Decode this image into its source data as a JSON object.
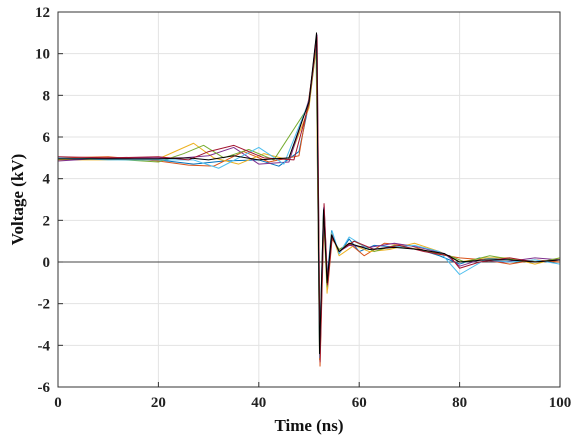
{
  "chart_data": {
    "type": "line",
    "title": "",
    "xlabel": "Time (ns)",
    "ylabel": "Voltage (kV)",
    "xlim": [
      0,
      100
    ],
    "ylim": [
      -6,
      12
    ],
    "x_ticks": [
      "0",
      "20",
      "40",
      "60",
      "80",
      "100"
    ],
    "y_ticks": [
      "-6",
      "-4",
      "-2",
      "0",
      "2",
      "4",
      "6",
      "8",
      "10",
      "12"
    ],
    "grid": true,
    "legend": "none",
    "zero_line": 0,
    "series": [
      {
        "color": "#0072bd",
        "values": [
          [
            0,
            4.95
          ],
          [
            10,
            4.98
          ],
          [
            20,
            4.9
          ],
          [
            27,
            4.7
          ],
          [
            33,
            4.85
          ],
          [
            40,
            4.9
          ],
          [
            44,
            4.6
          ],
          [
            48,
            5.3
          ],
          [
            50,
            7.6
          ],
          [
            51.4,
            10.7
          ],
          [
            52.1,
            -4.2
          ],
          [
            52.9,
            2.6
          ],
          [
            53.6,
            -0.8
          ],
          [
            54.5,
            1.5
          ],
          [
            56,
            0.4
          ],
          [
            58,
            1.1
          ],
          [
            60,
            0.5
          ],
          [
            63,
            0.8
          ],
          [
            68,
            0.7
          ],
          [
            72,
            0.6
          ],
          [
            76,
            0.3
          ],
          [
            80,
            -0.1
          ],
          [
            84,
            0.2
          ],
          [
            90,
            0.1
          ],
          [
            95,
            0
          ],
          [
            100,
            0.1
          ]
        ]
      },
      {
        "color": "#d95319",
        "values": [
          [
            0,
            5.0
          ],
          [
            10,
            5.05
          ],
          [
            20,
            4.85
          ],
          [
            26,
            4.65
          ],
          [
            31,
            4.6
          ],
          [
            37,
            5.3
          ],
          [
            42,
            4.8
          ],
          [
            48,
            5.1
          ],
          [
            50,
            7.9
          ],
          [
            51.5,
            10.5
          ],
          [
            52.2,
            -5.0
          ],
          [
            53,
            2.2
          ],
          [
            53.7,
            -1.3
          ],
          [
            54.6,
            1.1
          ],
          [
            56,
            0.6
          ],
          [
            58,
            0.9
          ],
          [
            61,
            0.3
          ],
          [
            65,
            0.9
          ],
          [
            70,
            0.8
          ],
          [
            75,
            0.4
          ],
          [
            80,
            0.2
          ],
          [
            85,
            0.1
          ],
          [
            90,
            -0.1
          ],
          [
            95,
            0.1
          ],
          [
            100,
            0.0
          ]
        ]
      },
      {
        "color": "#edb120",
        "values": [
          [
            0,
            4.9
          ],
          [
            10,
            4.9
          ],
          [
            20,
            4.95
          ],
          [
            27,
            5.7
          ],
          [
            31,
            5.0
          ],
          [
            36,
            4.7
          ],
          [
            41,
            5.2
          ],
          [
            46,
            4.9
          ],
          [
            50,
            7.4
          ],
          [
            51.4,
            10.3
          ],
          [
            52.1,
            -4.7
          ],
          [
            52.9,
            2.3
          ],
          [
            53.6,
            -1.5
          ],
          [
            54.5,
            1.4
          ],
          [
            56,
            0.3
          ],
          [
            59,
            0.8
          ],
          [
            62,
            0.5
          ],
          [
            66,
            0.6
          ],
          [
            71,
            0.9
          ],
          [
            76,
            0.5
          ],
          [
            80,
            0.0
          ],
          [
            85,
            0.2
          ],
          [
            90,
            0.2
          ],
          [
            95,
            -0.1
          ],
          [
            100,
            0.2
          ]
        ]
      },
      {
        "color": "#7e2f8e",
        "values": [
          [
            0,
            4.85
          ],
          [
            10,
            5.0
          ],
          [
            20,
            5.0
          ],
          [
            25,
            5.0
          ],
          [
            30,
            5.1
          ],
          [
            35,
            5.5
          ],
          [
            40,
            4.7
          ],
          [
            46,
            4.8
          ],
          [
            50,
            7.8
          ],
          [
            51.6,
            10.9
          ],
          [
            52.2,
            -4.5
          ],
          [
            53,
            2.7
          ],
          [
            53.7,
            -0.9
          ],
          [
            54.6,
            1.3
          ],
          [
            56,
            0.5
          ],
          [
            58,
            0.8
          ],
          [
            62,
            0.7
          ],
          [
            67,
            0.9
          ],
          [
            72,
            0.7
          ],
          [
            77,
            0.4
          ],
          [
            80,
            -0.2
          ],
          [
            84,
            0.1
          ],
          [
            89,
            0.0
          ],
          [
            95,
            0.2
          ],
          [
            100,
            0.1
          ]
        ]
      },
      {
        "color": "#77ac30",
        "values": [
          [
            0,
            4.95
          ],
          [
            10,
            4.95
          ],
          [
            20,
            4.8
          ],
          [
            25,
            5.2
          ],
          [
            29,
            5.6
          ],
          [
            33,
            5.0
          ],
          [
            38,
            5.4
          ],
          [
            43,
            4.9
          ],
          [
            50,
            7.5
          ],
          [
            51.5,
            10.4
          ],
          [
            52.2,
            -4.3
          ],
          [
            52.9,
            2.4
          ],
          [
            53.6,
            -1.2
          ],
          [
            54.5,
            1.2
          ],
          [
            56,
            0.6
          ],
          [
            59,
            1.0
          ],
          [
            63,
            0.5
          ],
          [
            67,
            0.8
          ],
          [
            72,
            0.6
          ],
          [
            78,
            0.3
          ],
          [
            81,
            0.0
          ],
          [
            86,
            0.3
          ],
          [
            91,
            0.1
          ],
          [
            96,
            0.0
          ],
          [
            100,
            0.2
          ]
        ]
      },
      {
        "color": "#4dbeee",
        "values": [
          [
            0,
            5.0
          ],
          [
            10,
            4.9
          ],
          [
            20,
            4.9
          ],
          [
            27,
            4.9
          ],
          [
            32,
            4.5
          ],
          [
            36,
            5.0
          ],
          [
            40,
            5.5
          ],
          [
            45,
            4.7
          ],
          [
            50,
            7.7
          ],
          [
            51.5,
            10.6
          ],
          [
            52.1,
            -4.6
          ],
          [
            53,
            2.5
          ],
          [
            53.7,
            -1.0
          ],
          [
            54.6,
            1.5
          ],
          [
            56,
            0.4
          ],
          [
            58,
            1.2
          ],
          [
            62,
            0.6
          ],
          [
            66,
            0.7
          ],
          [
            71,
            0.8
          ],
          [
            76,
            0.5
          ],
          [
            80,
            -0.6
          ],
          [
            85,
            0.1
          ],
          [
            90,
            0.0
          ],
          [
            95,
            0.1
          ],
          [
            100,
            -0.1
          ]
        ]
      },
      {
        "color": "#a2142f",
        "values": [
          [
            0,
            5.05
          ],
          [
            10,
            5.0
          ],
          [
            20,
            5.05
          ],
          [
            26,
            4.9
          ],
          [
            30,
            5.3
          ],
          [
            35,
            5.6
          ],
          [
            41,
            5.0
          ],
          [
            47,
            4.9
          ],
          [
            50,
            7.6
          ],
          [
            51.6,
            10.8
          ],
          [
            52.2,
            -4.8
          ],
          [
            53,
            2.8
          ],
          [
            53.7,
            -1.1
          ],
          [
            54.6,
            1.2
          ],
          [
            56,
            0.5
          ],
          [
            59,
            1.0
          ],
          [
            63,
            0.6
          ],
          [
            68,
            0.8
          ],
          [
            73,
            0.5
          ],
          [
            78,
            0.3
          ],
          [
            80,
            -0.3
          ],
          [
            84,
            0.0
          ],
          [
            90,
            0.2
          ],
          [
            95,
            0.0
          ],
          [
            100,
            0.1
          ]
        ]
      },
      {
        "color": "#000000",
        "values": [
          [
            0,
            4.95
          ],
          [
            10,
            4.95
          ],
          [
            20,
            4.95
          ],
          [
            26,
            5.0
          ],
          [
            30,
            4.9
          ],
          [
            35,
            5.1
          ],
          [
            40,
            4.9
          ],
          [
            46,
            5.0
          ],
          [
            50,
            7.7
          ],
          [
            51.5,
            11.0
          ],
          [
            52.1,
            -4.4
          ],
          [
            52.9,
            2.5
          ],
          [
            53.6,
            -1.0
          ],
          [
            54.5,
            1.3
          ],
          [
            56,
            0.5
          ],
          [
            58,
            0.9
          ],
          [
            62,
            0.6
          ],
          [
            67,
            0.7
          ],
          [
            72,
            0.6
          ],
          [
            77,
            0.4
          ],
          [
            80,
            0.0
          ],
          [
            85,
            0.1
          ],
          [
            90,
            0.1
          ],
          [
            95,
            0.0
          ],
          [
            100,
            0.1
          ]
        ]
      }
    ]
  }
}
